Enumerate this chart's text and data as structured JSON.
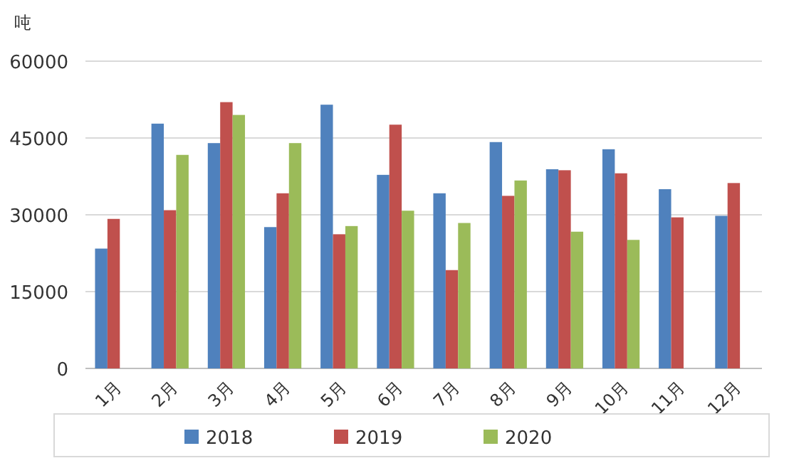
{
  "chart_data": {
    "type": "bar",
    "ylabel": "吨",
    "categories": [
      "1月",
      "2月",
      "3月",
      "4月",
      "5月",
      "6月",
      "7月",
      "8月",
      "9月",
      "10月",
      "11月",
      "12月"
    ],
    "series": [
      {
        "name": "2018",
        "color": "#4f81bd",
        "values": [
          23400,
          47800,
          44000,
          27600,
          51500,
          37800,
          34200,
          44200,
          38900,
          42800,
          35000,
          29800
        ]
      },
      {
        "name": "2019",
        "color": "#c0504d",
        "values": [
          29200,
          30900,
          52000,
          34200,
          26200,
          47600,
          19200,
          33700,
          38700,
          38100,
          29500,
          36200
        ]
      },
      {
        "name": "2020",
        "color": "#9bbb59",
        "values": [
          null,
          41700,
          49500,
          44000,
          27800,
          30800,
          28400,
          36700,
          26700,
          25100,
          null,
          null
        ]
      }
    ],
    "ylim": [
      0,
      60000
    ],
    "yticks": [
      0,
      15000,
      30000,
      45000,
      60000
    ],
    "grid": "y",
    "legend": "bottom"
  }
}
